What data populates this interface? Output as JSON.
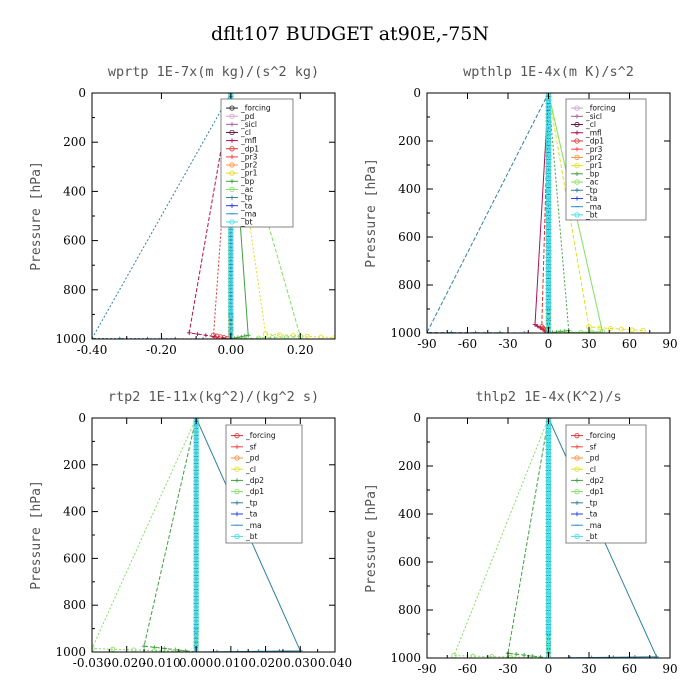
{
  "title": "dflt107  BUDGET at90E,-75N",
  "chart_data": [
    {
      "type": "line",
      "title": "wprtp  1E-7x(m kg)/(s^2 kg)",
      "xlabel": "",
      "ylabel": "Pressure [hPa]",
      "xlim": [
        -0.4,
        0.3
      ],
      "ylim": [
        0,
        1000
      ],
      "xticks": [
        -0.4,
        -0.2,
        0.0,
        0.2
      ],
      "xtick_labels": [
        "-0.40",
        "-0.20",
        "0.00",
        "0.20"
      ],
      "yticks": [
        0,
        200,
        400,
        600,
        800,
        1000
      ],
      "ytick_labels": [
        "0",
        "200",
        "400",
        "600",
        "800",
        "1000"
      ],
      "series": [
        {
          "name": "_forcing",
          "color": "#222222",
          "marker": "o",
          "x": [
            0,
            0,
            0
          ],
          "y": [
            0,
            900,
            1000
          ]
        },
        {
          "name": "_pd",
          "color": "#c8a0c8",
          "marker": "o",
          "x": [
            0,
            0,
            0
          ],
          "y": [
            0,
            900,
            1000
          ]
        },
        {
          "name": "_sicl",
          "color": "#a060a0",
          "marker": "+",
          "x": [
            0,
            0,
            0
          ],
          "y": [
            0,
            900,
            1000
          ]
        },
        {
          "name": "_cl",
          "color": "#5a1040",
          "marker": "o",
          "x": [
            0,
            0,
            0
          ],
          "y": [
            0,
            900,
            1000
          ]
        },
        {
          "name": "_mfl",
          "color": "#b01050",
          "marker": "+",
          "x": [
            0,
            -0.12,
            0
          ],
          "y": [
            0,
            975,
            1000
          ]
        },
        {
          "name": "_dp1",
          "color": "#e03030",
          "marker": "o",
          "x": [
            0,
            -0.05,
            0
          ],
          "y": [
            0,
            985,
            1000
          ]
        },
        {
          "name": "_pr3",
          "color": "#ff4040",
          "marker": "+",
          "x": [
            0,
            0,
            0
          ],
          "y": [
            0,
            900,
            1000
          ]
        },
        {
          "name": "_pr2",
          "color": "#ff9040",
          "marker": "o",
          "x": [
            0,
            0,
            0
          ],
          "y": [
            0,
            900,
            1000
          ]
        },
        {
          "name": "_pr1",
          "color": "#e0e020",
          "marker": "o",
          "x": [
            0,
            0.1,
            0.3
          ],
          "y": [
            0,
            980,
            995
          ]
        },
        {
          "name": "_bp",
          "color": "#40a040",
          "marker": "+",
          "x": [
            0,
            0.05,
            0
          ],
          "y": [
            0,
            985,
            1000
          ]
        },
        {
          "name": "_ac",
          "color": "#80e060",
          "marker": "o",
          "x": [
            0,
            0.2,
            0
          ],
          "y": [
            0,
            990,
            1000
          ]
        },
        {
          "name": "_tp",
          "color": "#3080a0",
          "marker": "+",
          "x": [
            0,
            -0.4,
            0
          ],
          "y": [
            0,
            998,
            1000
          ]
        },
        {
          "name": "_ta",
          "color": "#2040e0",
          "marker": "+",
          "x": [
            0,
            0,
            0
          ],
          "y": [
            0,
            900,
            1000
          ]
        },
        {
          "name": "_ma",
          "color": "#3090d0",
          "marker": "-",
          "x": [
            0,
            0,
            0
          ],
          "y": [
            0,
            900,
            1000
          ]
        },
        {
          "name": "_bt",
          "color": "#40e0f0",
          "marker": "o",
          "x": [
            0,
            0,
            0
          ],
          "y": [
            0,
            900,
            1000
          ]
        }
      ]
    },
    {
      "type": "line",
      "title": "wpthlp  1E-4x(m K)/s^2",
      "xlabel": "",
      "ylabel": "Pressure [hPa]",
      "xlim": [
        -90,
        90
      ],
      "ylim": [
        0,
        1000
      ],
      "xticks": [
        -90,
        -60,
        -30,
        0,
        30,
        60,
        90
      ],
      "xtick_labels": [
        "-90",
        "-60",
        "-30",
        "0",
        "30",
        "60",
        "90"
      ],
      "yticks": [
        0,
        200,
        400,
        600,
        800,
        1000
      ],
      "ytick_labels": [
        "0",
        "200",
        "400",
        "600",
        "800",
        "1000"
      ],
      "series": [
        {
          "name": "_forcing",
          "color": "#c8a0c8",
          "marker": "o",
          "x": [
            0,
            0,
            0
          ],
          "y": [
            0,
            900,
            1000
          ]
        },
        {
          "name": "_sicl",
          "color": "#a060a0",
          "marker": "+",
          "x": [
            0,
            0,
            0
          ],
          "y": [
            0,
            900,
            1000
          ]
        },
        {
          "name": "_cl",
          "color": "#5a1040",
          "marker": "o",
          "x": [
            0,
            0,
            0
          ],
          "y": [
            0,
            900,
            1000
          ]
        },
        {
          "name": "_mfl",
          "color": "#b01050",
          "marker": "+",
          "x": [
            0,
            -10,
            0
          ],
          "y": [
            0,
            965,
            1000
          ]
        },
        {
          "name": "_dp1",
          "color": "#e03030",
          "marker": "o",
          "x": [
            0,
            -5,
            0
          ],
          "y": [
            0,
            975,
            1000
          ]
        },
        {
          "name": "_pr3",
          "color": "#ff4040",
          "marker": "+",
          "x": [
            0,
            0,
            0
          ],
          "y": [
            0,
            900,
            1000
          ]
        },
        {
          "name": "_pr2",
          "color": "#ff9040",
          "marker": "o",
          "x": [
            0,
            0,
            0
          ],
          "y": [
            0,
            900,
            1000
          ]
        },
        {
          "name": "_pr1",
          "color": "#e0e020",
          "marker": "o",
          "x": [
            0,
            30,
            70
          ],
          "y": [
            0,
            975,
            990
          ]
        },
        {
          "name": "_bp",
          "color": "#40a040",
          "marker": "+",
          "x": [
            0,
            15,
            0
          ],
          "y": [
            0,
            990,
            1000
          ]
        },
        {
          "name": "_ac",
          "color": "#80e060",
          "marker": "o",
          "x": [
            0,
            40,
            0
          ],
          "y": [
            0,
            995,
            1000
          ]
        },
        {
          "name": "_tp",
          "color": "#3080a0",
          "marker": "+",
          "x": [
            0,
            -90,
            0
          ],
          "y": [
            0,
            998,
            1000
          ]
        },
        {
          "name": "_ta",
          "color": "#2040e0",
          "marker": "+",
          "x": [
            0,
            0,
            0
          ],
          "y": [
            0,
            900,
            1000
          ]
        },
        {
          "name": "_ma",
          "color": "#3090d0",
          "marker": "-",
          "x": [
            0,
            0,
            0
          ],
          "y": [
            0,
            900,
            1000
          ]
        },
        {
          "name": "_bt",
          "color": "#40e0f0",
          "marker": "o",
          "x": [
            0,
            0,
            0
          ],
          "y": [
            0,
            900,
            1000
          ]
        }
      ]
    },
    {
      "type": "line",
      "title": "rtp2  1E-11x(kg^2)/(kg^2 s)",
      "xlabel": "",
      "ylabel": "Pressure [hPa]",
      "xlim": [
        -0.03,
        0.04
      ],
      "ylim": [
        0,
        1000
      ],
      "xticks": [
        -0.03,
        -0.02,
        -0.01,
        0.0,
        0.01,
        0.02,
        0.03,
        0.04
      ],
      "xtick_labels": [
        "-0.030",
        "-0.020",
        "-0.010",
        "0.000",
        "0.010",
        "0.020",
        "0.030",
        "0.040"
      ],
      "yticks": [
        0,
        200,
        400,
        600,
        800,
        1000
      ],
      "ytick_labels": [
        "0",
        "200",
        "400",
        "600",
        "800",
        "1000"
      ],
      "series": [
        {
          "name": "_forcing",
          "color": "#e03030",
          "marker": "o",
          "x": [
            0,
            0,
            0
          ],
          "y": [
            0,
            900,
            1000
          ]
        },
        {
          "name": "_sf",
          "color": "#ff4040",
          "marker": "+",
          "x": [
            0,
            0,
            0
          ],
          "y": [
            0,
            900,
            1000
          ]
        },
        {
          "name": "_pd",
          "color": "#ff9040",
          "marker": "o",
          "x": [
            0,
            0,
            0
          ],
          "y": [
            0,
            900,
            1000
          ]
        },
        {
          "name": "_cl",
          "color": "#e0e020",
          "marker": "o",
          "x": [
            0,
            0,
            0
          ],
          "y": [
            0,
            900,
            1000
          ]
        },
        {
          "name": "_dp2",
          "color": "#40a040",
          "marker": "+",
          "x": [
            0,
            -0.015,
            0
          ],
          "y": [
            0,
            975,
            1000
          ]
        },
        {
          "name": "_dp1",
          "color": "#80e060",
          "marker": "o",
          "x": [
            0,
            -0.03,
            0
          ],
          "y": [
            0,
            985,
            1000
          ]
        },
        {
          "name": "_tp",
          "color": "#3080a0",
          "marker": "+",
          "x": [
            0,
            0.03,
            0
          ],
          "y": [
            0,
            995,
            1000
          ]
        },
        {
          "name": "_ta",
          "color": "#2040e0",
          "marker": "+",
          "x": [
            0,
            0,
            0
          ],
          "y": [
            0,
            900,
            1000
          ]
        },
        {
          "name": "_ma",
          "color": "#3090d0",
          "marker": "-",
          "x": [
            0,
            0,
            0
          ],
          "y": [
            0,
            900,
            1000
          ]
        },
        {
          "name": "_bt",
          "color": "#40e0f0",
          "marker": "o",
          "x": [
            0,
            0,
            0
          ],
          "y": [
            0,
            900,
            1000
          ]
        }
      ]
    },
    {
      "type": "line",
      "title": "thlp2  1E-4x(K^2)/s",
      "xlabel": "",
      "ylabel": "Pressure [hPa]",
      "xlim": [
        -90,
        90
      ],
      "ylim": [
        0,
        1000
      ],
      "xticks": [
        -90,
        -60,
        -30,
        0,
        30,
        60,
        90
      ],
      "xtick_labels": [
        "-90",
        "-60",
        "-30",
        "0",
        "30",
        "60",
        "90"
      ],
      "yticks": [
        0,
        200,
        400,
        600,
        800,
        1000
      ],
      "ytick_labels": [
        "0",
        "200",
        "400",
        "600",
        "800",
        "1000"
      ],
      "series": [
        {
          "name": "_forcing",
          "color": "#e03030",
          "marker": "o",
          "x": [
            0,
            0,
            0
          ],
          "y": [
            0,
            900,
            1000
          ]
        },
        {
          "name": "_sf",
          "color": "#ff4040",
          "marker": "+",
          "x": [
            0,
            0,
            0
          ],
          "y": [
            0,
            900,
            1000
          ]
        },
        {
          "name": "_pd",
          "color": "#ff9040",
          "marker": "o",
          "x": [
            0,
            0,
            0
          ],
          "y": [
            0,
            900,
            1000
          ]
        },
        {
          "name": "_cl",
          "color": "#e0e020",
          "marker": "o",
          "x": [
            0,
            0,
            0
          ],
          "y": [
            0,
            900,
            1000
          ]
        },
        {
          "name": "_dp2",
          "color": "#40a040",
          "marker": "+",
          "x": [
            0,
            -30,
            0
          ],
          "y": [
            0,
            980,
            1000
          ]
        },
        {
          "name": "_dp1",
          "color": "#80e060",
          "marker": "o",
          "x": [
            0,
            -70,
            0
          ],
          "y": [
            0,
            990,
            1000
          ]
        },
        {
          "name": "_tp",
          "color": "#3080a0",
          "marker": "+",
          "x": [
            0,
            80,
            0
          ],
          "y": [
            0,
            995,
            1000
          ]
        },
        {
          "name": "_ta",
          "color": "#2040e0",
          "marker": "+",
          "x": [
            0,
            0,
            0
          ],
          "y": [
            0,
            900,
            1000
          ]
        },
        {
          "name": "_ma",
          "color": "#3090d0",
          "marker": "-",
          "x": [
            0,
            0,
            0
          ],
          "y": [
            0,
            900,
            1000
          ]
        },
        {
          "name": "_bt",
          "color": "#40e0f0",
          "marker": "o",
          "x": [
            0,
            0,
            0
          ],
          "y": [
            0,
            900,
            1000
          ]
        }
      ]
    }
  ]
}
